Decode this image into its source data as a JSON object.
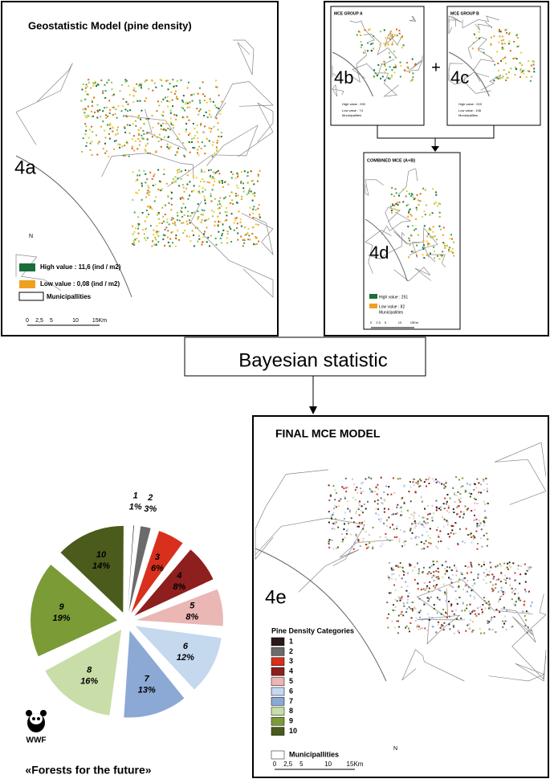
{
  "map_4a": {
    "title": "Geostatistic Model (pine density)",
    "label": "4a",
    "north": "N",
    "legend_high": "High value : 11,6 (ind / m2)",
    "legend_low": "Low value : 0,08 (ind / m2)",
    "legend_municipalities": "Municipallities",
    "scale": [
      "0",
      "2,5",
      "5",
      "10",
      "15Km"
    ]
  },
  "map_4b": {
    "title": "MCE GROUP A",
    "label": "4b",
    "legend_high": "High value : 200",
    "legend_low": "Low value : 74",
    "legend_municipalities": "Municipalities"
  },
  "map_4c": {
    "title": "MCE GROUP B",
    "label": "4c",
    "legend_high": "High value : 203",
    "legend_low": "Low value : 108",
    "legend_municipalities": "Municipalities"
  },
  "plus": "+",
  "map_4d": {
    "title": "COMBINED MCE (A+B)",
    "label": "4d",
    "legend_high": "High value : 251",
    "legend_low": "Low value : 82",
    "legend_municipalities": "Municipalities",
    "scale": [
      "0",
      "2,5",
      "5",
      "10",
      "15Km"
    ]
  },
  "bayesian": "Bayesian statistic",
  "map_4e": {
    "title": "FINAL MCE MODEL",
    "label": "4e",
    "north": "N",
    "legend_title": "Pine Density Categories",
    "legend_municipalities": "Municipallities",
    "scale": [
      "0",
      "2,5",
      "5",
      "10",
      "15Km"
    ]
  },
  "wwf": {
    "logo": "WWF",
    "slogan": "«Forests for the future»"
  },
  "chart_data": {
    "type": "pie",
    "categories": [
      "1",
      "2",
      "3",
      "4",
      "5",
      "6",
      "7",
      "8",
      "9",
      "10"
    ],
    "values": [
      1,
      3,
      6,
      8,
      8,
      12,
      13,
      16,
      19,
      14
    ],
    "value_labels": [
      "1%",
      "3%",
      "6%",
      "8%",
      "8%",
      "12%",
      "13%",
      "16%",
      "19%",
      "14%"
    ],
    "colors": [
      "#2b1a1a",
      "#6b6b6b",
      "#d8301c",
      "#8e1f1f",
      "#eab7b5",
      "#c4d8ee",
      "#8ba9d4",
      "#c9dda9",
      "#7a9b36",
      "#4a5b1c"
    ]
  }
}
